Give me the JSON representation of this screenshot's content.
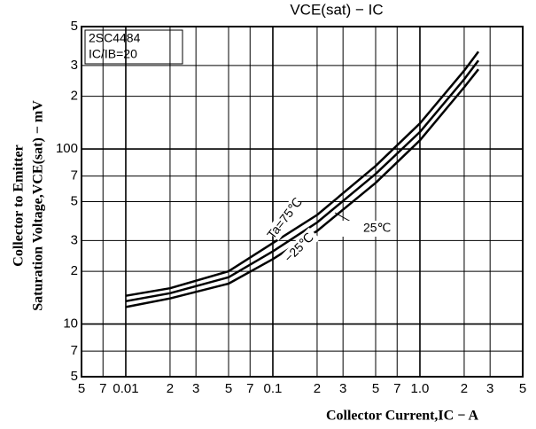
{
  "chart_data": {
    "type": "line",
    "title": "VCE(sat) − IC",
    "xlabel": "Collector Current,IC − A",
    "ylabel": [
      "Collector to Emitter",
      "Saturation Voltage,VCE(sat) − mV"
    ],
    "annotations": [
      "2SC4484",
      "IC/IB=20"
    ],
    "xscale": "log",
    "yscale": "log",
    "grid": true,
    "x": [
      0.01,
      0.02,
      0.05,
      0.1,
      0.2,
      0.5,
      1,
      2,
      2.5
    ],
    "series": [
      {
        "name": "Ta=75℃",
        "color": "#000000",
        "values": [
          14.5,
          16,
          20,
          29,
          42,
          80,
          140,
          280,
          360
        ]
      },
      {
        "name": "25℃",
        "color": "#000000",
        "values": [
          13.5,
          15,
          18.5,
          26,
          38,
          72,
          125,
          250,
          320
        ]
      },
      {
        "name": "−25℃",
        "color": "#000000",
        "values": [
          12.5,
          14,
          17,
          23.5,
          34,
          64,
          112,
          225,
          285
        ]
      }
    ],
    "xlim": [
      0.005,
      5
    ],
    "xticks": [
      {
        "value": 0.005,
        "label": "5"
      },
      {
        "value": 0.007,
        "label": "7"
      },
      0.01,
      {
        "value": 0.02,
        "label": "2"
      },
      {
        "value": 0.03,
        "label": "3"
      },
      {
        "value": 0.05,
        "label": "5"
      },
      {
        "value": 0.07,
        "label": "7"
      },
      0.1,
      {
        "value": 0.2,
        "label": "2"
      },
      {
        "value": 0.3,
        "label": "3"
      },
      {
        "value": 0.5,
        "label": "5"
      },
      {
        "value": 0.7,
        "label": "7"
      },
      {
        "value": 1,
        "label": "1.0"
      },
      2,
      3,
      5
    ],
    "ylim": [
      5,
      500
    ],
    "yticks": [
      5,
      7,
      10,
      {
        "value": 20,
        "label": "2"
      },
      {
        "value": 30,
        "label": "3"
      },
      {
        "value": 50,
        "label": "5"
      },
      {
        "value": 70,
        "label": "7"
      },
      100,
      {
        "value": 200,
        "label": "2"
      },
      {
        "value": 300,
        "label": "3"
      },
      {
        "value": 500,
        "label": "5"
      }
    ]
  }
}
